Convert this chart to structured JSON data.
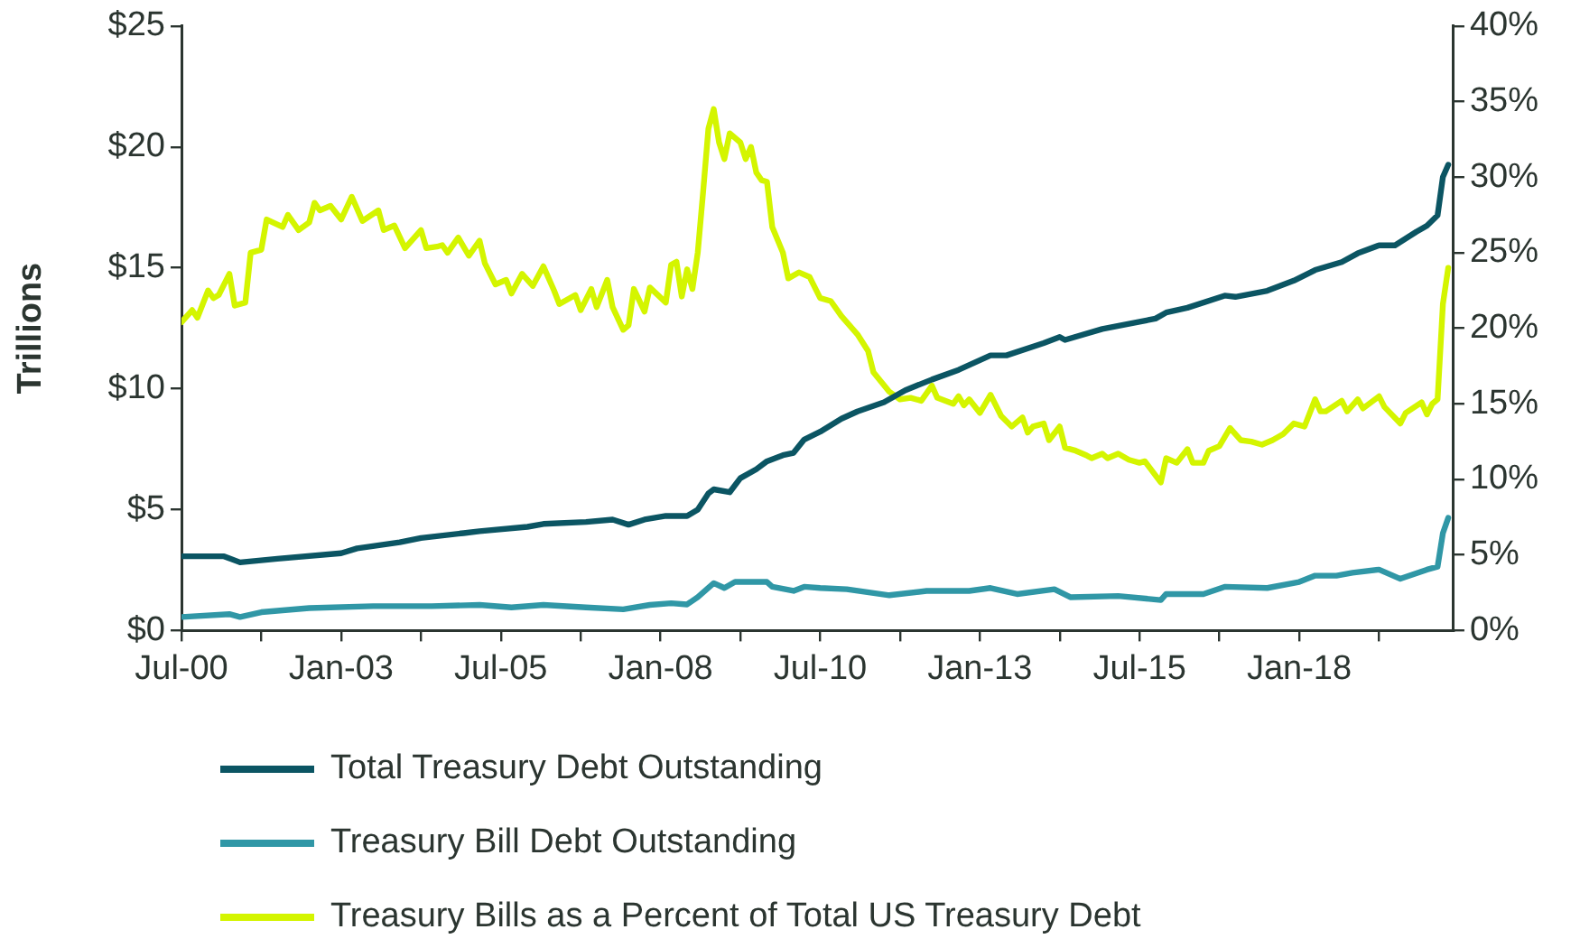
{
  "chart_data": {
    "type": "line",
    "ylabel": "Trillions",
    "legend": "bottom",
    "grid": false,
    "marker": "none",
    "line_style": "solid",
    "xlim": [
      "2000-07",
      "2020-06"
    ],
    "xticks": [
      {
        "value": "2000-07",
        "label": "Jul-00"
      },
      {
        "value": "2001-10",
        "label": null
      },
      {
        "value": "2003-01",
        "label": "Jan-03"
      },
      {
        "value": "2004-04",
        "label": null
      },
      {
        "value": "2005-07",
        "label": "Jul-05"
      },
      {
        "value": "2006-10",
        "label": null
      },
      {
        "value": "2008-01",
        "label": "Jan-08"
      },
      {
        "value": "2009-04",
        "label": null
      },
      {
        "value": "2010-07",
        "label": "Jul-10"
      },
      {
        "value": "2011-10",
        "label": null
      },
      {
        "value": "2013-01",
        "label": "Jan-13"
      },
      {
        "value": "2014-04",
        "label": null
      },
      {
        "value": "2015-07",
        "label": "Jul-15"
      },
      {
        "value": "2016-10",
        "label": null
      },
      {
        "value": "2018-01",
        "label": "Jan-18"
      },
      {
        "value": "2019-04",
        "label": null
      }
    ],
    "ylim": [
      0,
      25
    ],
    "yticks": [
      {
        "value": 0,
        "label": "$0"
      },
      {
        "value": 5,
        "label": "$5"
      },
      {
        "value": 10,
        "label": "$10"
      },
      {
        "value": 15,
        "label": "$15"
      },
      {
        "value": 20,
        "label": "$20"
      },
      {
        "value": 25,
        "label": "$25"
      }
    ],
    "y2lim": [
      0,
      40
    ],
    "y2ticks": [
      {
        "value": 0,
        "label": "0%"
      },
      {
        "value": 5,
        "label": "5%"
      },
      {
        "value": 10,
        "label": "10%"
      },
      {
        "value": 15,
        "label": "15%"
      },
      {
        "value": 20,
        "label": "20%"
      },
      {
        "value": 25,
        "label": "25%"
      },
      {
        "value": 30,
        "label": "30%"
      },
      {
        "value": 35,
        "label": "35%"
      },
      {
        "value": 40,
        "label": "40%"
      }
    ],
    "series": [
      {
        "name": "Total Treasury Debt Outstanding",
        "color": "#0b5563",
        "x": [
          "2000-07",
          "2001-03",
          "2001-06",
          "2002-01",
          "2003-01",
          "2003-04",
          "2003-12",
          "2004-04",
          "2004-12",
          "2005-03",
          "2005-12",
          "2006-03",
          "2006-11",
          "2007-04",
          "2007-07",
          "2007-10",
          "2008-02",
          "2008-06",
          "2008-08",
          "2008-10",
          "2008-11",
          "2009-02",
          "2009-04",
          "2009-07",
          "2009-09",
          "2009-12",
          "2010-02",
          "2010-04",
          "2010-07",
          "2010-11",
          "2011-02",
          "2011-07",
          "2011-11",
          "2012-04",
          "2012-09",
          "2013-03",
          "2013-06",
          "2014-01",
          "2014-04",
          "2014-05",
          "2014-12",
          "2015-07",
          "2015-10",
          "2015-12",
          "2016-04",
          "2016-11",
          "2017-01",
          "2017-07",
          "2017-12",
          "2018-04",
          "2018-09",
          "2018-12",
          "2019-04",
          "2019-07",
          "2019-11",
          "2020-01",
          "2020-03",
          "2020-04",
          "2020-05"
        ],
        "values": [
          3.07,
          3.07,
          2.82,
          2.97,
          3.2,
          3.4,
          3.65,
          3.83,
          4.03,
          4.11,
          4.29,
          4.41,
          4.49,
          4.59,
          4.38,
          4.59,
          4.74,
          4.74,
          5.0,
          5.67,
          5.84,
          5.72,
          6.3,
          6.67,
          7.0,
          7.25,
          7.35,
          7.9,
          8.22,
          8.76,
          9.06,
          9.44,
          9.94,
          10.38,
          10.78,
          11.38,
          11.38,
          11.89,
          12.14,
          12.02,
          12.47,
          12.77,
          12.9,
          13.15,
          13.35,
          13.85,
          13.8,
          14.05,
          14.47,
          14.91,
          15.24,
          15.6,
          15.93,
          15.93,
          16.49,
          16.74,
          17.17,
          18.76,
          19.26
        ]
      },
      {
        "name": "Treasury Bill Debt Outstanding",
        "color": "#3097a6",
        "x": [
          "2000-07",
          "2001-04",
          "2001-06",
          "2001-10",
          "2002-07",
          "2003-07",
          "2004-06",
          "2005-03",
          "2005-09",
          "2006-03",
          "2006-11",
          "2007-06",
          "2007-11",
          "2008-03",
          "2008-06",
          "2008-08",
          "2008-11",
          "2009-01",
          "2009-03",
          "2009-09",
          "2009-10",
          "2010-02",
          "2010-04",
          "2010-07",
          "2010-12",
          "2011-08",
          "2012-03",
          "2012-11",
          "2013-03",
          "2013-08",
          "2014-03",
          "2014-06",
          "2015-03",
          "2015-11",
          "2015-12",
          "2016-07",
          "2016-11",
          "2017-07",
          "2018-01",
          "2018-04",
          "2018-08",
          "2018-11",
          "2019-04",
          "2019-08",
          "2020-01",
          "2020-03",
          "2020-04",
          "2020-05"
        ],
        "values": [
          0.56,
          0.68,
          0.56,
          0.76,
          0.93,
          1.01,
          1.01,
          1.06,
          0.96,
          1.06,
          0.96,
          0.88,
          1.06,
          1.13,
          1.08,
          1.38,
          1.96,
          1.76,
          2.01,
          2.01,
          1.81,
          1.64,
          1.81,
          1.76,
          1.71,
          1.46,
          1.64,
          1.64,
          1.76,
          1.51,
          1.71,
          1.38,
          1.43,
          1.26,
          1.51,
          1.51,
          1.81,
          1.76,
          2.01,
          2.27,
          2.27,
          2.39,
          2.52,
          2.14,
          2.52,
          2.64,
          4.03,
          4.66
        ]
      },
      {
        "name": "Treasury Bills as a Percent of Total US Treasury Debt",
        "color": "#d4f500",
        "axis": "y2",
        "x": [
          "2000-07",
          "2000-09",
          "2000-10",
          "2000-12",
          "2001-01",
          "2001-02",
          "2001-04",
          "2001-05",
          "2001-07",
          "2001-08",
          "2001-10",
          "2001-11",
          "2002-02",
          "2002-03",
          "2002-05",
          "2002-07",
          "2002-08",
          "2002-09",
          "2002-11",
          "2003-01",
          "2003-03",
          "2003-05",
          "2003-08",
          "2003-09",
          "2003-11",
          "2004-01",
          "2004-04",
          "2004-05",
          "2004-07",
          "2004-08",
          "2004-09",
          "2004-11",
          "2005-01",
          "2005-03",
          "2005-04",
          "2005-06",
          "2005-08",
          "2005-09",
          "2005-11",
          "2006-01",
          "2006-03",
          "2006-05",
          "2006-06",
          "2006-09",
          "2006-10",
          "2006-12",
          "2007-01",
          "2007-03",
          "2007-04",
          "2007-06",
          "2007-07",
          "2007-08",
          "2007-10",
          "2007-11",
          "2008-02",
          "2008-03",
          "2008-04",
          "2008-05",
          "2008-06",
          "2008-07",
          "2008-08",
          "2008-09",
          "2008-10",
          "2008-11",
          "2008-12",
          "2009-01",
          "2009-02",
          "2009-04",
          "2009-05",
          "2009-06",
          "2009-07",
          "2009-08",
          "2009-09",
          "2009-10",
          "2009-12",
          "2010-01",
          "2010-03",
          "2010-05",
          "2010-07",
          "2010-09",
          "2010-11",
          "2011-02",
          "2011-04",
          "2011-05",
          "2011-08",
          "2011-10",
          "2011-12",
          "2012-02",
          "2012-04",
          "2012-05",
          "2012-08",
          "2012-09",
          "2012-10",
          "2012-11",
          "2013-01",
          "2013-03",
          "2013-05",
          "2013-07",
          "2013-09",
          "2013-10",
          "2013-11",
          "2014-01",
          "2014-02",
          "2014-04",
          "2014-05",
          "2014-07",
          "2014-09",
          "2014-10",
          "2014-12",
          "2015-01",
          "2015-03",
          "2015-05",
          "2015-07",
          "2015-08",
          "2015-11",
          "2015-12",
          "2016-02",
          "2016-04",
          "2016-05",
          "2016-07",
          "2016-08",
          "2016-10",
          "2016-12",
          "2017-02",
          "2017-04",
          "2017-06",
          "2017-08",
          "2017-10",
          "2017-12",
          "2018-02",
          "2018-04",
          "2018-05",
          "2018-06",
          "2018-09",
          "2018-10",
          "2018-12",
          "2019-01",
          "2019-04",
          "2019-05",
          "2019-08",
          "2019-09",
          "2019-12",
          "2020-01",
          "2020-02",
          "2020-03",
          "2020-04",
          "2020-05"
        ],
        "values": [
          20.4,
          21.2,
          20.7,
          22.5,
          22.0,
          22.2,
          23.6,
          21.5,
          21.7,
          25.0,
          25.2,
          27.2,
          26.7,
          27.5,
          26.5,
          27.0,
          28.3,
          27.8,
          28.1,
          27.2,
          28.7,
          27.1,
          27.8,
          26.5,
          26.8,
          25.3,
          26.5,
          25.3,
          25.4,
          25.5,
          25.0,
          26.0,
          24.8,
          25.8,
          24.3,
          22.9,
          23.2,
          22.3,
          23.6,
          22.8,
          24.1,
          22.5,
          21.6,
          22.2,
          21.2,
          22.6,
          21.4,
          23.2,
          21.4,
          19.9,
          20.2,
          22.6,
          21.1,
          22.7,
          21.7,
          24.2,
          24.4,
          22.1,
          23.9,
          22.6,
          25.0,
          29.0,
          33.2,
          34.5,
          32.3,
          31.2,
          32.9,
          32.3,
          31.2,
          32.0,
          30.3,
          29.8,
          29.7,
          26.7,
          25.0,
          23.3,
          23.7,
          23.4,
          22.0,
          21.8,
          20.8,
          19.6,
          18.5,
          17.1,
          15.8,
          15.3,
          15.4,
          15.2,
          16.2,
          15.4,
          15.0,
          15.5,
          14.9,
          15.3,
          14.4,
          15.6,
          14.2,
          13.5,
          14.1,
          13.1,
          13.5,
          13.7,
          12.6,
          13.5,
          12.1,
          11.9,
          11.6,
          11.4,
          11.7,
          11.4,
          11.7,
          11.3,
          11.1,
          11.2,
          9.8,
          11.4,
          11.1,
          12.0,
          11.1,
          11.1,
          11.9,
          12.2,
          13.4,
          12.6,
          12.5,
          12.3,
          12.6,
          13.0,
          13.7,
          13.5,
          15.3,
          14.5,
          14.5,
          15.2,
          14.5,
          15.3,
          14.7,
          15.5,
          14.8,
          13.7,
          14.4,
          15.1,
          14.3,
          15.0,
          15.3,
          21.6,
          24.0
        ]
      }
    ]
  }
}
